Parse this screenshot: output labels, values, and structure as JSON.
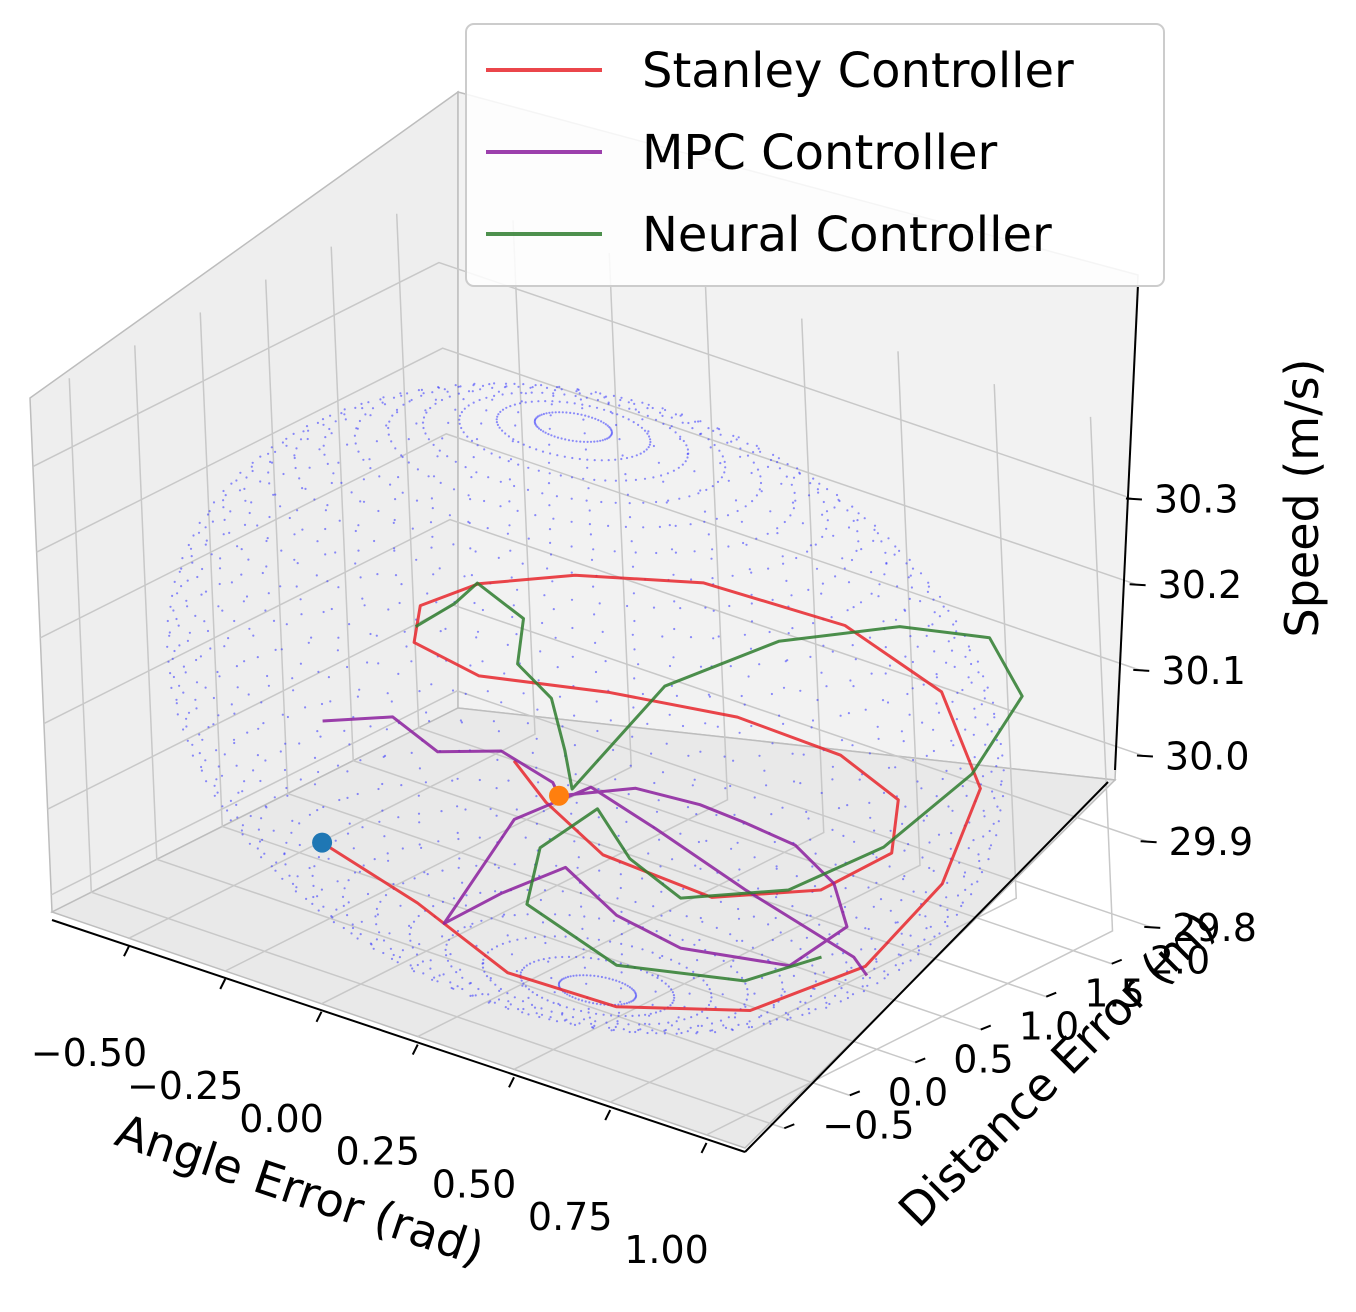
{
  "chart_data": {
    "type": "line-3d",
    "title": "",
    "xlabel": "Angle Error (rad)",
    "ylabel": "Distance Error (m)",
    "zlabel": "Speed (m/s)",
    "x_ticks": [
      "−0.50",
      "−0.25",
      "0.00",
      "0.25",
      "0.50",
      "0.75",
      "1.00"
    ],
    "y_ticks": [
      "−0.5",
      "0.0",
      "0.5",
      "1.0",
      "1.5",
      "2.0"
    ],
    "z_ticks": [
      "29.8",
      "29.9",
      "30.0",
      "30.1",
      "30.2",
      "30.3"
    ],
    "xlim": [
      -0.7,
      1.1
    ],
    "ylim": [
      -0.8,
      2.3
    ],
    "zlim": [
      29.78,
      30.38
    ],
    "grid": true,
    "legend_position": "top-right",
    "series": [
      {
        "name": "Stanley Controller",
        "color": "#e8262b",
        "points": [
          [
            -0.28,
            0.05,
            29.86
          ],
          [
            0.0,
            -0.05,
            29.84
          ],
          [
            0.3,
            -0.25,
            29.82
          ],
          [
            0.6,
            -0.3,
            29.83
          ],
          [
            0.9,
            -0.15,
            29.86
          ],
          [
            1.05,
            0.3,
            29.9
          ],
          [
            1.05,
            0.9,
            29.95
          ],
          [
            0.95,
            1.5,
            30.0
          ],
          [
            0.7,
            1.95,
            30.04
          ],
          [
            0.4,
            2.1,
            30.06
          ],
          [
            0.05,
            2.05,
            30.06
          ],
          [
            -0.2,
            1.8,
            30.05
          ],
          [
            -0.35,
            1.5,
            30.04
          ],
          [
            -0.4,
            1.2,
            30.03
          ],
          [
            -0.35,
            1.0,
            30.01
          ],
          [
            -0.2,
            1.05,
            29.99
          ],
          [
            0.05,
            1.3,
            29.99
          ],
          [
            0.3,
            1.55,
            29.98
          ],
          [
            0.55,
            1.6,
            29.97
          ],
          [
            0.75,
            1.45,
            29.96
          ],
          [
            0.85,
            1.1,
            29.94
          ],
          [
            0.8,
            0.7,
            29.92
          ],
          [
            0.6,
            0.45,
            29.9
          ],
          [
            0.3,
            0.5,
            29.9
          ],
          [
            0.05,
            0.8,
            29.9
          ],
          [
            -0.1,
            1.0,
            29.91
          ]
        ]
      },
      {
        "name": "MPC Controller",
        "color": "#8b1f9e",
        "points": [
          [
            -0.6,
            1.0,
            29.88
          ],
          [
            -0.45,
            1.1,
            29.9
          ],
          [
            -0.3,
            1.0,
            29.89
          ],
          [
            -0.15,
            1.05,
            29.91
          ],
          [
            0.0,
            1.0,
            29.9
          ],
          [
            0.05,
            0.9,
            29.9
          ],
          [
            0.2,
            1.05,
            29.92
          ],
          [
            0.35,
            1.1,
            29.92
          ],
          [
            0.5,
            1.0,
            29.93
          ],
          [
            0.65,
            0.95,
            29.93
          ],
          [
            0.8,
            0.8,
            29.92
          ],
          [
            0.9,
            0.6,
            29.9
          ],
          [
            0.85,
            0.3,
            29.87
          ],
          [
            0.6,
            0.2,
            29.86
          ],
          [
            0.4,
            0.3,
            29.86
          ],
          [
            0.2,
            0.5,
            29.87
          ],
          [
            0.1,
            0.3,
            29.84
          ],
          [
            0.05,
            0.0,
            29.82
          ],
          [
            0.0,
            0.7,
            29.88
          ],
          [
            0.1,
            1.0,
            29.91
          ],
          [
            0.3,
            0.9,
            29.9
          ],
          [
            0.6,
            0.7,
            29.89
          ],
          [
            0.95,
            0.5,
            29.88
          ],
          [
            1.0,
            0.45,
            29.87
          ]
        ]
      },
      {
        "name": "Neural Controller",
        "color": "#2e7d2e",
        "points": [
          [
            -0.45,
            1.3,
            29.99
          ],
          [
            -0.38,
            1.4,
            30.02
          ],
          [
            -0.3,
            1.35,
            30.06
          ],
          [
            -0.2,
            1.4,
            30.03
          ],
          [
            -0.15,
            1.2,
            30.0
          ],
          [
            -0.1,
            1.3,
            29.96
          ],
          [
            0.0,
            1.1,
            29.93
          ],
          [
            0.05,
            1.0,
            29.9
          ],
          [
            0.2,
            1.3,
            30.02
          ],
          [
            0.4,
            1.6,
            30.08
          ],
          [
            0.65,
            1.8,
            30.12
          ],
          [
            0.85,
            1.9,
            30.13
          ],
          [
            1.0,
            1.7,
            30.1
          ],
          [
            1.0,
            1.3,
            30.04
          ],
          [
            0.9,
            0.9,
            29.97
          ],
          [
            0.75,
            0.6,
            29.92
          ],
          [
            0.5,
            0.5,
            29.88
          ],
          [
            0.3,
            0.7,
            29.88
          ],
          [
            0.15,
            0.9,
            29.9
          ],
          [
            0.1,
            0.6,
            29.87
          ],
          [
            0.2,
            0.2,
            29.85
          ],
          [
            0.5,
            0.0,
            29.84
          ],
          [
            0.8,
            0.1,
            29.86
          ],
          [
            0.9,
            0.4,
            29.88
          ]
        ]
      }
    ],
    "start_markers": [
      {
        "color": "#1f77b4",
        "point": [
          -0.28,
          0.05,
          29.86
        ]
      },
      {
        "color": "#ff7f0e",
        "point": [
          0.05,
          0.9,
          29.9
        ]
      }
    ],
    "ellipsoid": {
      "color": "#3333ff",
      "center": [
        0.2,
        0.7,
        30.04
      ],
      "radii": [
        0.95,
        1.55,
        0.33
      ]
    }
  }
}
